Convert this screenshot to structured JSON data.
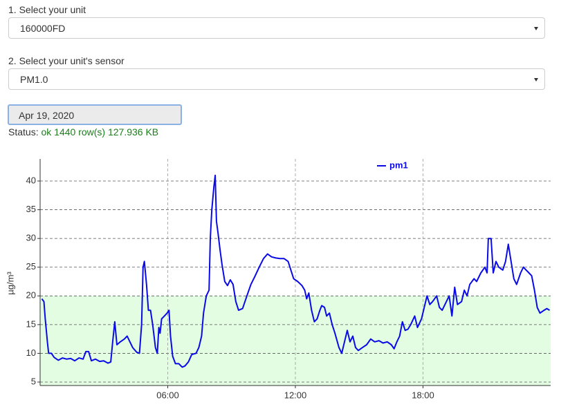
{
  "form": {
    "unit_label": "1. Select your unit",
    "unit_value": "160000FD",
    "sensor_label": "2. Select your unit's sensor",
    "sensor_value": "PM1.0",
    "date_value": "Apr 19, 2020",
    "status_label": "Status:",
    "status_value": "ok 1440 row(s) 127.936 KB"
  },
  "chart_data": {
    "type": "line",
    "y_label": "µg/m³",
    "x": [
      0.08,
      0.18,
      0.24,
      0.34,
      0.4,
      0.53,
      0.66,
      0.86,
      1.05,
      1.25,
      1.44,
      1.63,
      1.83,
      2.02,
      2.15,
      2.28,
      2.41,
      2.6,
      2.8,
      2.99,
      3.19,
      3.32,
      3.41,
      3.51,
      3.61,
      3.77,
      3.96,
      4.09,
      4.22,
      4.35,
      4.54,
      4.67,
      4.77,
      4.84,
      4.9,
      5.0,
      5.09,
      5.19,
      5.29,
      5.42,
      5.51,
      5.58,
      5.64,
      5.71,
      5.84,
      5.97,
      6.06,
      6.13,
      6.23,
      6.36,
      6.52,
      6.68,
      6.81,
      6.97,
      7.13,
      7.33,
      7.46,
      7.59,
      7.68,
      7.81,
      7.94,
      8.0,
      8.07,
      8.17,
      8.23,
      8.29,
      8.36,
      8.46,
      8.55,
      8.68,
      8.81,
      8.94,
      9.07,
      9.2,
      9.33,
      9.52,
      9.72,
      9.91,
      10.11,
      10.3,
      10.5,
      10.69,
      10.88,
      11.08,
      11.27,
      11.47,
      11.66,
      11.79,
      11.92,
      12.11,
      12.31,
      12.44,
      12.53,
      12.63,
      12.76,
      12.89,
      13.02,
      13.15,
      13.24,
      13.37,
      13.47,
      13.6,
      13.73,
      13.86,
      14.05,
      14.18,
      14.31,
      14.44,
      14.57,
      14.7,
      14.83,
      14.96,
      15.15,
      15.35,
      15.54,
      15.73,
      15.93,
      16.12,
      16.32,
      16.51,
      16.64,
      16.77,
      16.9,
      17.03,
      17.16,
      17.29,
      17.42,
      17.61,
      17.74,
      17.93,
      18.06,
      18.19,
      18.32,
      18.45,
      18.64,
      18.77,
      18.9,
      19.03,
      19.23,
      19.36,
      19.49,
      19.62,
      19.81,
      19.94,
      20.07,
      20.2,
      20.4,
      20.52,
      20.72,
      20.91,
      21.01,
      21.07,
      21.2,
      21.3,
      21.43,
      21.56,
      21.75,
      21.88,
      22.01,
      22.14,
      22.27,
      22.4,
      22.59,
      22.72,
      22.85,
      22.98,
      23.11,
      23.24,
      23.37,
      23.5,
      23.69,
      23.82,
      23.95
    ],
    "series": [
      {
        "name": "pm1",
        "color": "#0a0ae6",
        "values": [
          19.5,
          19,
          16,
          12,
          10,
          10,
          9.3,
          8.8,
          9.2,
          9,
          9.1,
          8.7,
          9.2,
          9,
          10.3,
          10.3,
          8.7,
          9,
          8.6,
          8.7,
          8.3,
          8.5,
          12,
          15.5,
          11.5,
          12,
          12.5,
          13,
          12,
          11,
          10.2,
          10,
          15,
          25,
          26,
          22,
          17.5,
          17.5,
          15,
          11,
          10,
          14.5,
          13.5,
          16,
          16.5,
          17,
          17.5,
          13,
          9.5,
          8.2,
          8.2,
          7.6,
          7.8,
          8.5,
          9.8,
          10,
          11,
          13,
          17,
          20,
          21,
          30,
          35,
          39,
          41,
          33,
          31,
          28,
          25.5,
          22.5,
          21.8,
          22.8,
          22,
          19,
          17.5,
          17.8,
          20,
          22,
          23.5,
          25,
          26.5,
          27.3,
          26.8,
          26.6,
          26.5,
          26.5,
          26,
          24.5,
          23,
          22.5,
          21.8,
          21,
          19.5,
          20.5,
          17.5,
          15.5,
          16,
          17.5,
          18.3,
          18,
          16.5,
          17,
          15,
          13.5,
          11,
          10,
          12,
          14,
          12,
          13,
          11,
          10.5,
          11,
          11.5,
          12.5,
          12,
          12.2,
          11.8,
          12,
          11.5,
          10.8,
          12,
          13,
          15.5,
          14,
          14.2,
          15,
          16.5,
          14.5,
          16,
          18,
          20,
          18.5,
          19,
          20,
          18,
          17.5,
          18.5,
          20,
          16.5,
          21.5,
          18.5,
          19,
          21,
          20,
          22,
          23,
          22.5,
          24,
          25,
          24,
          30,
          30,
          24,
          26,
          25,
          24.5,
          26,
          29,
          26,
          23,
          22,
          24,
          25,
          24.5,
          24,
          23.5,
          21,
          18,
          17,
          17.5,
          17.8,
          17.5
        ]
      }
    ],
    "xlim": [
      0,
      24
    ],
    "xticks": [
      {
        "value": 6,
        "label": "06:00"
      },
      {
        "value": 12,
        "label": "12:00"
      },
      {
        "value": 18,
        "label": "18:00"
      }
    ],
    "ylim": [
      4.4,
      43.85
    ],
    "yticks": [
      5,
      10,
      15,
      20,
      25,
      30,
      35,
      40
    ],
    "grid": true,
    "band": {
      "max": 20,
      "color": "#e2fde2"
    },
    "legend": "top"
  }
}
